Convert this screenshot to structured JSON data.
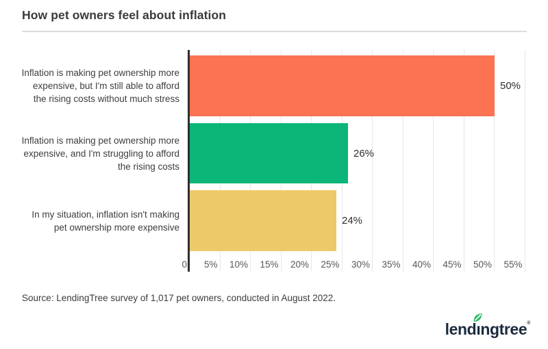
{
  "title": "How pet owners feel about inflation",
  "chart_data": {
    "type": "bar",
    "orientation": "horizontal",
    "title": "How pet owners feel about inflation",
    "categories": [
      "Inflation is making pet ownership more expensive, but I'm still able to afford the rising costs without much stress",
      "Inflation is making pet ownership more expensive, and I'm struggling to afford the rising costs",
      "In my situation, inflation isn't making pet ownership more expensive"
    ],
    "values": [
      50,
      26,
      24
    ],
    "value_labels": [
      "50%",
      "26%",
      "24%"
    ],
    "bar_colors": [
      "#FB7353",
      "#0CB578",
      "#EDC969"
    ],
    "x_ticks": [
      "0",
      "5%",
      "10%",
      "15%",
      "20%",
      "25%",
      "30%",
      "35%",
      "40%",
      "45%",
      "50%",
      "55%"
    ],
    "x_tick_values": [
      0,
      5,
      10,
      15,
      20,
      25,
      30,
      35,
      40,
      45,
      50,
      55
    ],
    "xlim": [
      0,
      55
    ],
    "grid": true,
    "legend": false
  },
  "source": "Source: LendingTree survey of 1,017 pet owners, conducted in August 2022.",
  "logo": {
    "pre": "lend",
    "dotless_i": "ı",
    "post": "ngtree",
    "registered": "®",
    "navy": "#1B2B3E",
    "leaf_color_dark": "#0EA355",
    "leaf_color_light": "#45D16F"
  },
  "colors": {
    "accent_orange": "#FB7353",
    "accent_green": "#0CB578",
    "accent_yellow": "#EDC969",
    "axis_line": "#2E2E2E",
    "gridline": "#E6E6E6",
    "text_dark": "#3A3A3A",
    "tick_text": "#55565B",
    "divider": "#DCDCDC"
  }
}
